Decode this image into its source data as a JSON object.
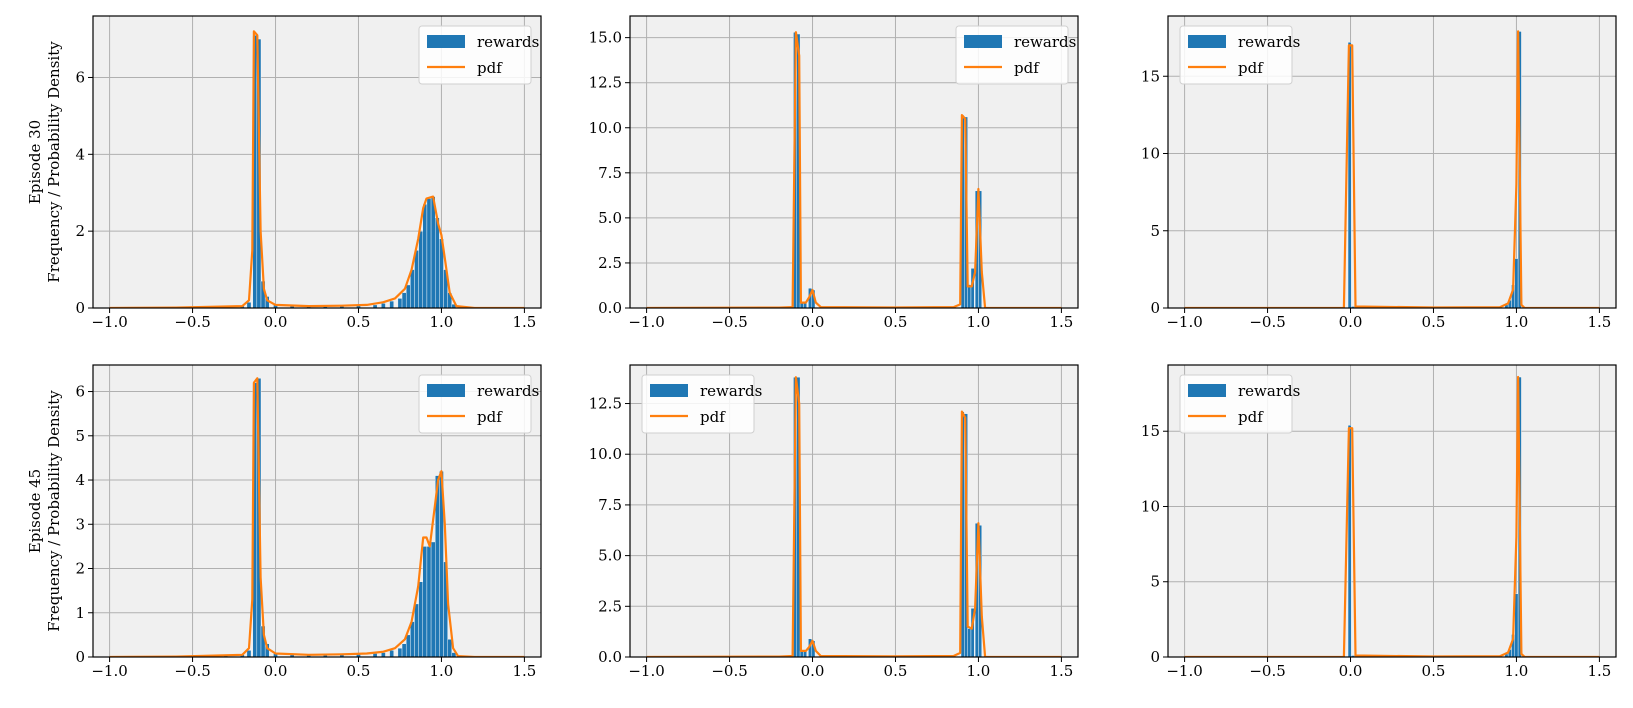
{
  "colors": {
    "bars": "#1f77b4",
    "pdf": "#ff7f0e",
    "plot_bg": "#f0f0f0",
    "grid": "#b0b0b0"
  },
  "chart_data": [
    {
      "type": "bar",
      "row_label": "Episode 30",
      "ylabel": "Frequency / Probability Density",
      "xlim": [
        -1.1,
        1.6
      ],
      "ylim": [
        0,
        7.6
      ],
      "xticks": [
        -1.0,
        -0.5,
        0.0,
        0.5,
        1.0,
        1.5
      ],
      "xtick_labels": [
        "−1.0",
        "−0.5",
        "0.0",
        "0.5",
        "1.0",
        "1.5"
      ],
      "yticks": [
        0,
        2,
        4,
        6
      ],
      "ytick_labels": [
        "0",
        "2",
        "4",
        "6"
      ],
      "legend": {
        "loc": "upper-right",
        "entries": [
          "rewards",
          "pdf"
        ]
      },
      "bar_width": 0.025,
      "bars": [
        [
          -0.45,
          0.02
        ],
        [
          -0.3,
          0.03
        ],
        [
          -0.2,
          0.05
        ],
        [
          -0.16,
          0.15
        ],
        [
          -0.125,
          7.1
        ],
        [
          -0.1,
          7.0
        ],
        [
          -0.075,
          0.7
        ],
        [
          -0.05,
          0.3
        ],
        [
          0.0,
          0.08
        ],
        [
          0.1,
          0.05
        ],
        [
          0.2,
          0.05
        ],
        [
          0.3,
          0.05
        ],
        [
          0.4,
          0.05
        ],
        [
          0.5,
          0.06
        ],
        [
          0.6,
          0.08
        ],
        [
          0.65,
          0.12
        ],
        [
          0.7,
          0.18
        ],
        [
          0.75,
          0.25
        ],
        [
          0.775,
          0.4
        ],
        [
          0.8,
          0.6
        ],
        [
          0.825,
          1.0
        ],
        [
          0.85,
          1.5
        ],
        [
          0.875,
          2.0
        ],
        [
          0.9,
          2.7
        ],
        [
          0.925,
          2.85
        ],
        [
          0.95,
          2.9
        ],
        [
          0.975,
          2.35
        ],
        [
          1.0,
          1.8
        ],
        [
          1.025,
          1.0
        ],
        [
          1.05,
          0.4
        ],
        [
          1.075,
          0.1
        ]
      ],
      "pdf": [
        [
          -1.0,
          0
        ],
        [
          -0.6,
          0.01
        ],
        [
          -0.4,
          0.03
        ],
        [
          -0.2,
          0.05
        ],
        [
          -0.16,
          0.2
        ],
        [
          -0.14,
          1.5
        ],
        [
          -0.13,
          7.2
        ],
        [
          -0.11,
          7.1
        ],
        [
          -0.09,
          2.0
        ],
        [
          -0.07,
          0.5
        ],
        [
          -0.05,
          0.2
        ],
        [
          0.0,
          0.08
        ],
        [
          0.2,
          0.05
        ],
        [
          0.4,
          0.06
        ],
        [
          0.55,
          0.08
        ],
        [
          0.65,
          0.15
        ],
        [
          0.72,
          0.25
        ],
        [
          0.78,
          0.5
        ],
        [
          0.82,
          1.0
        ],
        [
          0.86,
          1.8
        ],
        [
          0.89,
          2.6
        ],
        [
          0.91,
          2.85
        ],
        [
          0.95,
          2.9
        ],
        [
          0.98,
          2.2
        ],
        [
          1.0,
          1.9
        ],
        [
          1.02,
          1.3
        ],
        [
          1.05,
          0.4
        ],
        [
          1.09,
          0.05
        ],
        [
          1.2,
          0
        ],
        [
          1.5,
          0
        ]
      ]
    },
    {
      "type": "bar",
      "row_label": "",
      "ylabel": "",
      "xlim": [
        -1.1,
        1.6
      ],
      "ylim": [
        0,
        16.2
      ],
      "xticks": [
        -1.0,
        -0.5,
        0.0,
        0.5,
        1.0,
        1.5
      ],
      "xtick_labels": [
        "−1.0",
        "−0.5",
        "0.0",
        "0.5",
        "1.0",
        "1.5"
      ],
      "yticks": [
        0,
        2.5,
        5,
        7.5,
        10,
        12.5,
        15
      ],
      "ytick_labels": [
        "0.0",
        "2.5",
        "5.0",
        "7.5",
        "10.0",
        "12.5",
        "15.0"
      ],
      "legend": {
        "loc": "upper-right",
        "entries": [
          "rewards",
          "pdf"
        ]
      },
      "bar_width": 0.02,
      "bars": [
        [
          -0.105,
          15.3
        ],
        [
          -0.085,
          15.2
        ],
        [
          -0.065,
          0.3
        ],
        [
          -0.045,
          0.3
        ],
        [
          -0.015,
          1.1
        ],
        [
          0.005,
          1.0
        ],
        [
          0.05,
          0.05
        ],
        [
          0.5,
          0.03
        ],
        [
          0.8,
          0.05
        ],
        [
          0.905,
          10.7
        ],
        [
          0.925,
          10.6
        ],
        [
          0.945,
          1.3
        ],
        [
          0.965,
          2.2
        ],
        [
          0.99,
          6.5
        ],
        [
          1.01,
          6.5
        ]
      ],
      "pdf": [
        [
          -1.0,
          0
        ],
        [
          -0.2,
          0.02
        ],
        [
          -0.12,
          0.05
        ],
        [
          -0.1,
          15.3
        ],
        [
          -0.08,
          14.0
        ],
        [
          -0.07,
          0.3
        ],
        [
          -0.04,
          0.3
        ],
        [
          -0.02,
          0.6
        ],
        [
          0.0,
          1.0
        ],
        [
          0.02,
          0.3
        ],
        [
          0.05,
          0.05
        ],
        [
          0.5,
          0.03
        ],
        [
          0.85,
          0.05
        ],
        [
          0.89,
          0.2
        ],
        [
          0.9,
          10.7
        ],
        [
          0.92,
          10.5
        ],
        [
          0.935,
          1.2
        ],
        [
          0.96,
          1.2
        ],
        [
          0.98,
          2.0
        ],
        [
          1.0,
          6.6
        ],
        [
          1.02,
          2.0
        ],
        [
          1.04,
          0
        ],
        [
          1.5,
          0
        ]
      ]
    },
    {
      "type": "bar",
      "row_label": "",
      "ylabel": "",
      "xlim": [
        -1.1,
        1.6
      ],
      "ylim": [
        0,
        18.9
      ],
      "xticks": [
        -1.0,
        -0.5,
        0.0,
        0.5,
        1.0,
        1.5
      ],
      "xtick_labels": [
        "−1.0",
        "−0.5",
        "0.0",
        "0.5",
        "1.0",
        "1.5"
      ],
      "yticks": [
        0,
        5,
        10,
        15
      ],
      "ytick_labels": [
        "0",
        "5",
        "10",
        "15"
      ],
      "legend": {
        "loc": "upper-left",
        "entries": [
          "rewards",
          "pdf"
        ]
      },
      "bar_width": 0.02,
      "bars": [
        [
          -0.005,
          17.2
        ],
        [
          0.015,
          0.1
        ],
        [
          0.94,
          0.2
        ],
        [
          0.96,
          0.5
        ],
        [
          0.98,
          1.5
        ],
        [
          1.0,
          3.2
        ],
        [
          1.02,
          17.9
        ]
      ],
      "pdf": [
        [
          -1.0,
          0
        ],
        [
          -0.04,
          0
        ],
        [
          -0.01,
          17.0
        ],
        [
          0.01,
          17.0
        ],
        [
          0.03,
          0.1
        ],
        [
          0.5,
          0.03
        ],
        [
          0.9,
          0.05
        ],
        [
          0.95,
          0.3
        ],
        [
          0.98,
          1.2
        ],
        [
          1.0,
          8.0
        ],
        [
          1.01,
          17.9
        ],
        [
          1.03,
          0.2
        ],
        [
          1.05,
          0
        ],
        [
          1.5,
          0
        ]
      ]
    },
    {
      "type": "bar",
      "row_label": "Episode 45",
      "ylabel": "Frequency / Probability Density",
      "xlim": [
        -1.1,
        1.6
      ],
      "ylim": [
        0,
        6.6
      ],
      "xticks": [
        -1.0,
        -0.5,
        0.0,
        0.5,
        1.0,
        1.5
      ],
      "xtick_labels": [
        "−1.0",
        "−0.5",
        "0.0",
        "0.5",
        "1.0",
        "1.5"
      ],
      "yticks": [
        0,
        1,
        2,
        3,
        4,
        5,
        6
      ],
      "ytick_labels": [
        "0",
        "1",
        "2",
        "3",
        "4",
        "5",
        "6"
      ],
      "legend": {
        "loc": "upper-right",
        "entries": [
          "rewards",
          "pdf"
        ]
      },
      "bar_width": 0.025,
      "bars": [
        [
          -0.45,
          0.02
        ],
        [
          -0.3,
          0.03
        ],
        [
          -0.2,
          0.05
        ],
        [
          -0.16,
          0.15
        ],
        [
          -0.125,
          6.2
        ],
        [
          -0.1,
          6.3
        ],
        [
          -0.075,
          0.7
        ],
        [
          -0.05,
          0.3
        ],
        [
          0.0,
          0.08
        ],
        [
          0.1,
          0.05
        ],
        [
          0.2,
          0.05
        ],
        [
          0.3,
          0.05
        ],
        [
          0.4,
          0.05
        ],
        [
          0.5,
          0.06
        ],
        [
          0.6,
          0.08
        ],
        [
          0.65,
          0.1
        ],
        [
          0.7,
          0.15
        ],
        [
          0.75,
          0.2
        ],
        [
          0.775,
          0.3
        ],
        [
          0.8,
          0.5
        ],
        [
          0.825,
          0.8
        ],
        [
          0.85,
          1.2
        ],
        [
          0.875,
          1.7
        ],
        [
          0.9,
          2.5
        ],
        [
          0.925,
          2.5
        ],
        [
          0.95,
          2.6
        ],
        [
          0.975,
          4.1
        ],
        [
          1.0,
          4.2
        ],
        [
          1.025,
          2.15
        ],
        [
          1.05,
          0.4
        ],
        [
          1.075,
          0.1
        ]
      ],
      "pdf": [
        [
          -1.0,
          0
        ],
        [
          -0.6,
          0.01
        ],
        [
          -0.4,
          0.03
        ],
        [
          -0.2,
          0.05
        ],
        [
          -0.16,
          0.2
        ],
        [
          -0.14,
          1.3
        ],
        [
          -0.13,
          6.2
        ],
        [
          -0.11,
          6.3
        ],
        [
          -0.09,
          1.8
        ],
        [
          -0.07,
          0.5
        ],
        [
          -0.05,
          0.2
        ],
        [
          0.0,
          0.08
        ],
        [
          0.2,
          0.05
        ],
        [
          0.4,
          0.06
        ],
        [
          0.55,
          0.08
        ],
        [
          0.65,
          0.12
        ],
        [
          0.72,
          0.2
        ],
        [
          0.78,
          0.4
        ],
        [
          0.82,
          0.8
        ],
        [
          0.86,
          1.6
        ],
        [
          0.89,
          2.7
        ],
        [
          0.91,
          2.7
        ],
        [
          0.93,
          2.5
        ],
        [
          0.96,
          3.4
        ],
        [
          0.98,
          4.0
        ],
        [
          1.0,
          4.2
        ],
        [
          1.02,
          3.0
        ],
        [
          1.04,
          1.2
        ],
        [
          1.07,
          0.2
        ],
        [
          1.1,
          0.02
        ],
        [
          1.2,
          0
        ],
        [
          1.5,
          0
        ]
      ]
    },
    {
      "type": "bar",
      "row_label": "",
      "ylabel": "",
      "xlim": [
        -1.1,
        1.6
      ],
      "ylim": [
        0,
        14.4
      ],
      "xticks": [
        -1.0,
        -0.5,
        0.0,
        0.5,
        1.0,
        1.5
      ],
      "xtick_labels": [
        "−1.0",
        "−0.5",
        "0.0",
        "0.5",
        "1.0",
        "1.5"
      ],
      "yticks": [
        0,
        2.5,
        5,
        7.5,
        10,
        12.5
      ],
      "ytick_labels": [
        "0.0",
        "2.5",
        "5.0",
        "7.5",
        "10.0",
        "12.5"
      ],
      "legend": {
        "loc": "upper-left",
        "entries": [
          "rewards",
          "pdf"
        ]
      },
      "bar_width": 0.02,
      "bars": [
        [
          -0.105,
          13.8
        ],
        [
          -0.085,
          13.8
        ],
        [
          -0.065,
          0.3
        ],
        [
          -0.045,
          0.3
        ],
        [
          -0.015,
          0.9
        ],
        [
          0.005,
          0.8
        ],
        [
          0.05,
          0.05
        ],
        [
          0.5,
          0.03
        ],
        [
          0.8,
          0.05
        ],
        [
          0.905,
          12.1
        ],
        [
          0.925,
          12.0
        ],
        [
          0.945,
          1.4
        ],
        [
          0.965,
          2.4
        ],
        [
          0.99,
          6.6
        ],
        [
          1.01,
          6.5
        ]
      ],
      "pdf": [
        [
          -1.0,
          0
        ],
        [
          -0.2,
          0.02
        ],
        [
          -0.12,
          0.05
        ],
        [
          -0.1,
          13.8
        ],
        [
          -0.08,
          12.5
        ],
        [
          -0.07,
          0.3
        ],
        [
          -0.04,
          0.3
        ],
        [
          -0.02,
          0.5
        ],
        [
          0.0,
          0.8
        ],
        [
          0.02,
          0.3
        ],
        [
          0.05,
          0.05
        ],
        [
          0.5,
          0.03
        ],
        [
          0.85,
          0.05
        ],
        [
          0.89,
          0.2
        ],
        [
          0.9,
          12.1
        ],
        [
          0.92,
          11.8
        ],
        [
          0.935,
          1.5
        ],
        [
          0.96,
          1.4
        ],
        [
          0.98,
          2.4
        ],
        [
          1.0,
          6.6
        ],
        [
          1.02,
          2.0
        ],
        [
          1.04,
          0
        ],
        [
          1.5,
          0
        ]
      ]
    },
    {
      "type": "bar",
      "row_label": "",
      "ylabel": "",
      "xlim": [
        -1.1,
        1.6
      ],
      "ylim": [
        0,
        19.4
      ],
      "xticks": [
        -1.0,
        -0.5,
        0.0,
        0.5,
        1.0,
        1.5
      ],
      "xtick_labels": [
        "−1.0",
        "−0.5",
        "0.0",
        "0.5",
        "1.0",
        "1.5"
      ],
      "yticks": [
        0,
        5,
        10,
        15
      ],
      "ytick_labels": [
        "0",
        "5",
        "10",
        "15"
      ],
      "legend": {
        "loc": "upper-left",
        "entries": [
          "rewards",
          "pdf"
        ]
      },
      "bar_width": 0.02,
      "bars": [
        [
          -0.005,
          15.4
        ],
        [
          0.015,
          0.1
        ],
        [
          0.94,
          0.2
        ],
        [
          0.96,
          0.5
        ],
        [
          0.98,
          1.5
        ],
        [
          1.0,
          4.2
        ],
        [
          1.02,
          18.6
        ]
      ],
      "pdf": [
        [
          -1.0,
          0
        ],
        [
          -0.04,
          0
        ],
        [
          -0.01,
          15.2
        ],
        [
          0.01,
          15.2
        ],
        [
          0.03,
          0.1
        ],
        [
          0.5,
          0.03
        ],
        [
          0.9,
          0.05
        ],
        [
          0.95,
          0.3
        ],
        [
          0.98,
          1.2
        ],
        [
          1.0,
          8.0
        ],
        [
          1.01,
          18.6
        ],
        [
          1.03,
          0.2
        ],
        [
          1.05,
          0
        ],
        [
          1.5,
          0
        ]
      ]
    }
  ]
}
